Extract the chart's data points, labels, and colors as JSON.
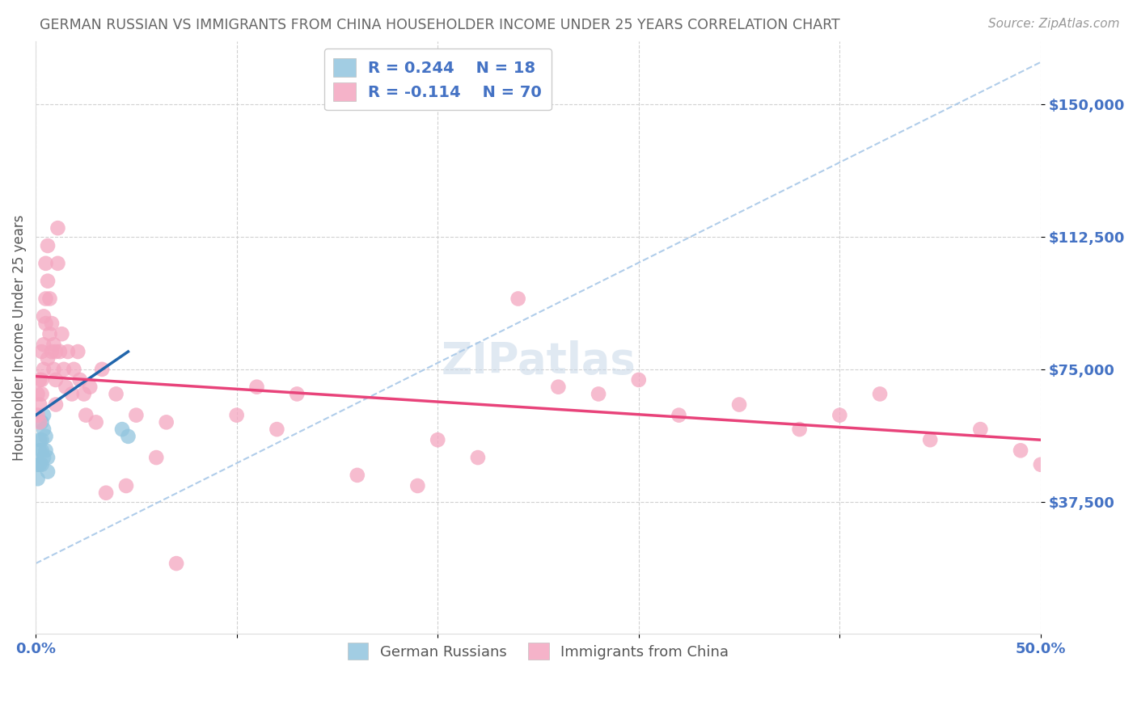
{
  "title": "GERMAN RUSSIAN VS IMMIGRANTS FROM CHINA HOUSEHOLDER INCOME UNDER 25 YEARS CORRELATION CHART",
  "source": "Source: ZipAtlas.com",
  "ylabel": "Householder Income Under 25 years",
  "ytick_labels": [
    "$37,500",
    "$75,000",
    "$112,500",
    "$150,000"
  ],
  "ytick_values": [
    37500,
    75000,
    112500,
    150000
  ],
  "ymin": 0,
  "ymax": 168000,
  "xmin": 0.0,
  "xmax": 0.5,
  "r_blue": 0.244,
  "n_blue": 18,
  "r_pink": -0.114,
  "n_pink": 70,
  "legend_label_blue": "German Russians",
  "legend_label_pink": "Immigrants from China",
  "blue_color": "#92c5de",
  "pink_color": "#f4a6c0",
  "blue_line_color": "#2166ac",
  "pink_line_color": "#e8437a",
  "dashed_line_color": "#a8c8e8",
  "title_color": "#666666",
  "source_color": "#999999",
  "axis_label_color": "#4472c4",
  "legend_r_color": "#4472c4",
  "background_color": "#ffffff",
  "blue_scatter_x": [
    0.001,
    0.001,
    0.002,
    0.002,
    0.002,
    0.003,
    0.003,
    0.003,
    0.003,
    0.004,
    0.004,
    0.004,
    0.005,
    0.005,
    0.006,
    0.006,
    0.043,
    0.046
  ],
  "blue_scatter_y": [
    48000,
    44000,
    55000,
    52000,
    48000,
    60000,
    55000,
    52000,
    48000,
    62000,
    58000,
    50000,
    56000,
    52000,
    50000,
    46000,
    58000,
    56000
  ],
  "pink_scatter_x": [
    0.001,
    0.001,
    0.002,
    0.002,
    0.002,
    0.003,
    0.003,
    0.003,
    0.004,
    0.004,
    0.004,
    0.005,
    0.005,
    0.005,
    0.006,
    0.006,
    0.006,
    0.007,
    0.007,
    0.008,
    0.008,
    0.009,
    0.009,
    0.01,
    0.01,
    0.01,
    0.011,
    0.011,
    0.012,
    0.013,
    0.014,
    0.015,
    0.016,
    0.018,
    0.019,
    0.021,
    0.022,
    0.024,
    0.025,
    0.027,
    0.03,
    0.033,
    0.035,
    0.04,
    0.045,
    0.05,
    0.06,
    0.065,
    0.07,
    0.1,
    0.11,
    0.12,
    0.13,
    0.16,
    0.19,
    0.2,
    0.22,
    0.24,
    0.26,
    0.28,
    0.3,
    0.32,
    0.35,
    0.38,
    0.4,
    0.42,
    0.445,
    0.47,
    0.49,
    0.5
  ],
  "pink_scatter_y": [
    68000,
    62000,
    72000,
    65000,
    60000,
    80000,
    72000,
    68000,
    90000,
    82000,
    75000,
    105000,
    95000,
    88000,
    110000,
    100000,
    78000,
    95000,
    85000,
    88000,
    80000,
    82000,
    75000,
    80000,
    72000,
    65000,
    115000,
    105000,
    80000,
    85000,
    75000,
    70000,
    80000,
    68000,
    75000,
    80000,
    72000,
    68000,
    62000,
    70000,
    60000,
    75000,
    40000,
    68000,
    42000,
    62000,
    50000,
    60000,
    20000,
    62000,
    70000,
    58000,
    68000,
    45000,
    42000,
    55000,
    50000,
    95000,
    70000,
    68000,
    72000,
    62000,
    65000,
    58000,
    62000,
    68000,
    55000,
    58000,
    52000,
    48000
  ],
  "blue_line_x": [
    0.0,
    0.046
  ],
  "blue_line_y": [
    62000,
    80000
  ],
  "pink_line_x": [
    0.0,
    0.5
  ],
  "pink_line_y": [
    73000,
    55000
  ]
}
